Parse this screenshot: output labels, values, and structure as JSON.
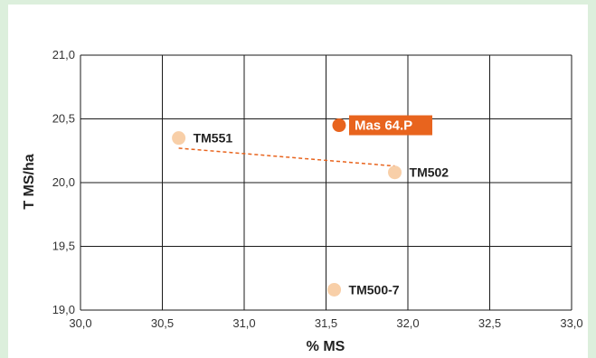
{
  "chart_data": {
    "type": "scatter",
    "xlabel": "% MS",
    "ylabel": "T MS/ha",
    "xlim": [
      30.0,
      33.0
    ],
    "ylim": [
      19.0,
      21.0
    ],
    "x_ticks": [
      "30,0",
      "30,5",
      "31,0",
      "31,5",
      "32,0",
      "32,5",
      "33,0"
    ],
    "y_ticks": [
      "19,0",
      "19,5",
      "20,0",
      "20,5",
      "21,0"
    ],
    "grid": true,
    "points": [
      {
        "label": "TM551",
        "x": 30.6,
        "y": 20.35,
        "highlight": false
      },
      {
        "label": "Mas 64.P",
        "x": 31.58,
        "y": 20.45,
        "highlight": true
      },
      {
        "label": "TM502",
        "x": 31.92,
        "y": 20.08,
        "highlight": false
      },
      {
        "label": "TM500-7",
        "x": 31.55,
        "y": 19.16,
        "highlight": false
      }
    ],
    "trendline": {
      "x": [
        30.6,
        31.92
      ],
      "y": [
        20.27,
        20.13
      ],
      "style": "dashed"
    },
    "colors": {
      "point": "#f8cfa8",
      "highlight_point": "#e8641e",
      "highlight_label_bg": "#e8641e",
      "trendline": "#e8641e",
      "grid": "#1a1a1a",
      "frame_bg": "#dcefdc"
    }
  }
}
